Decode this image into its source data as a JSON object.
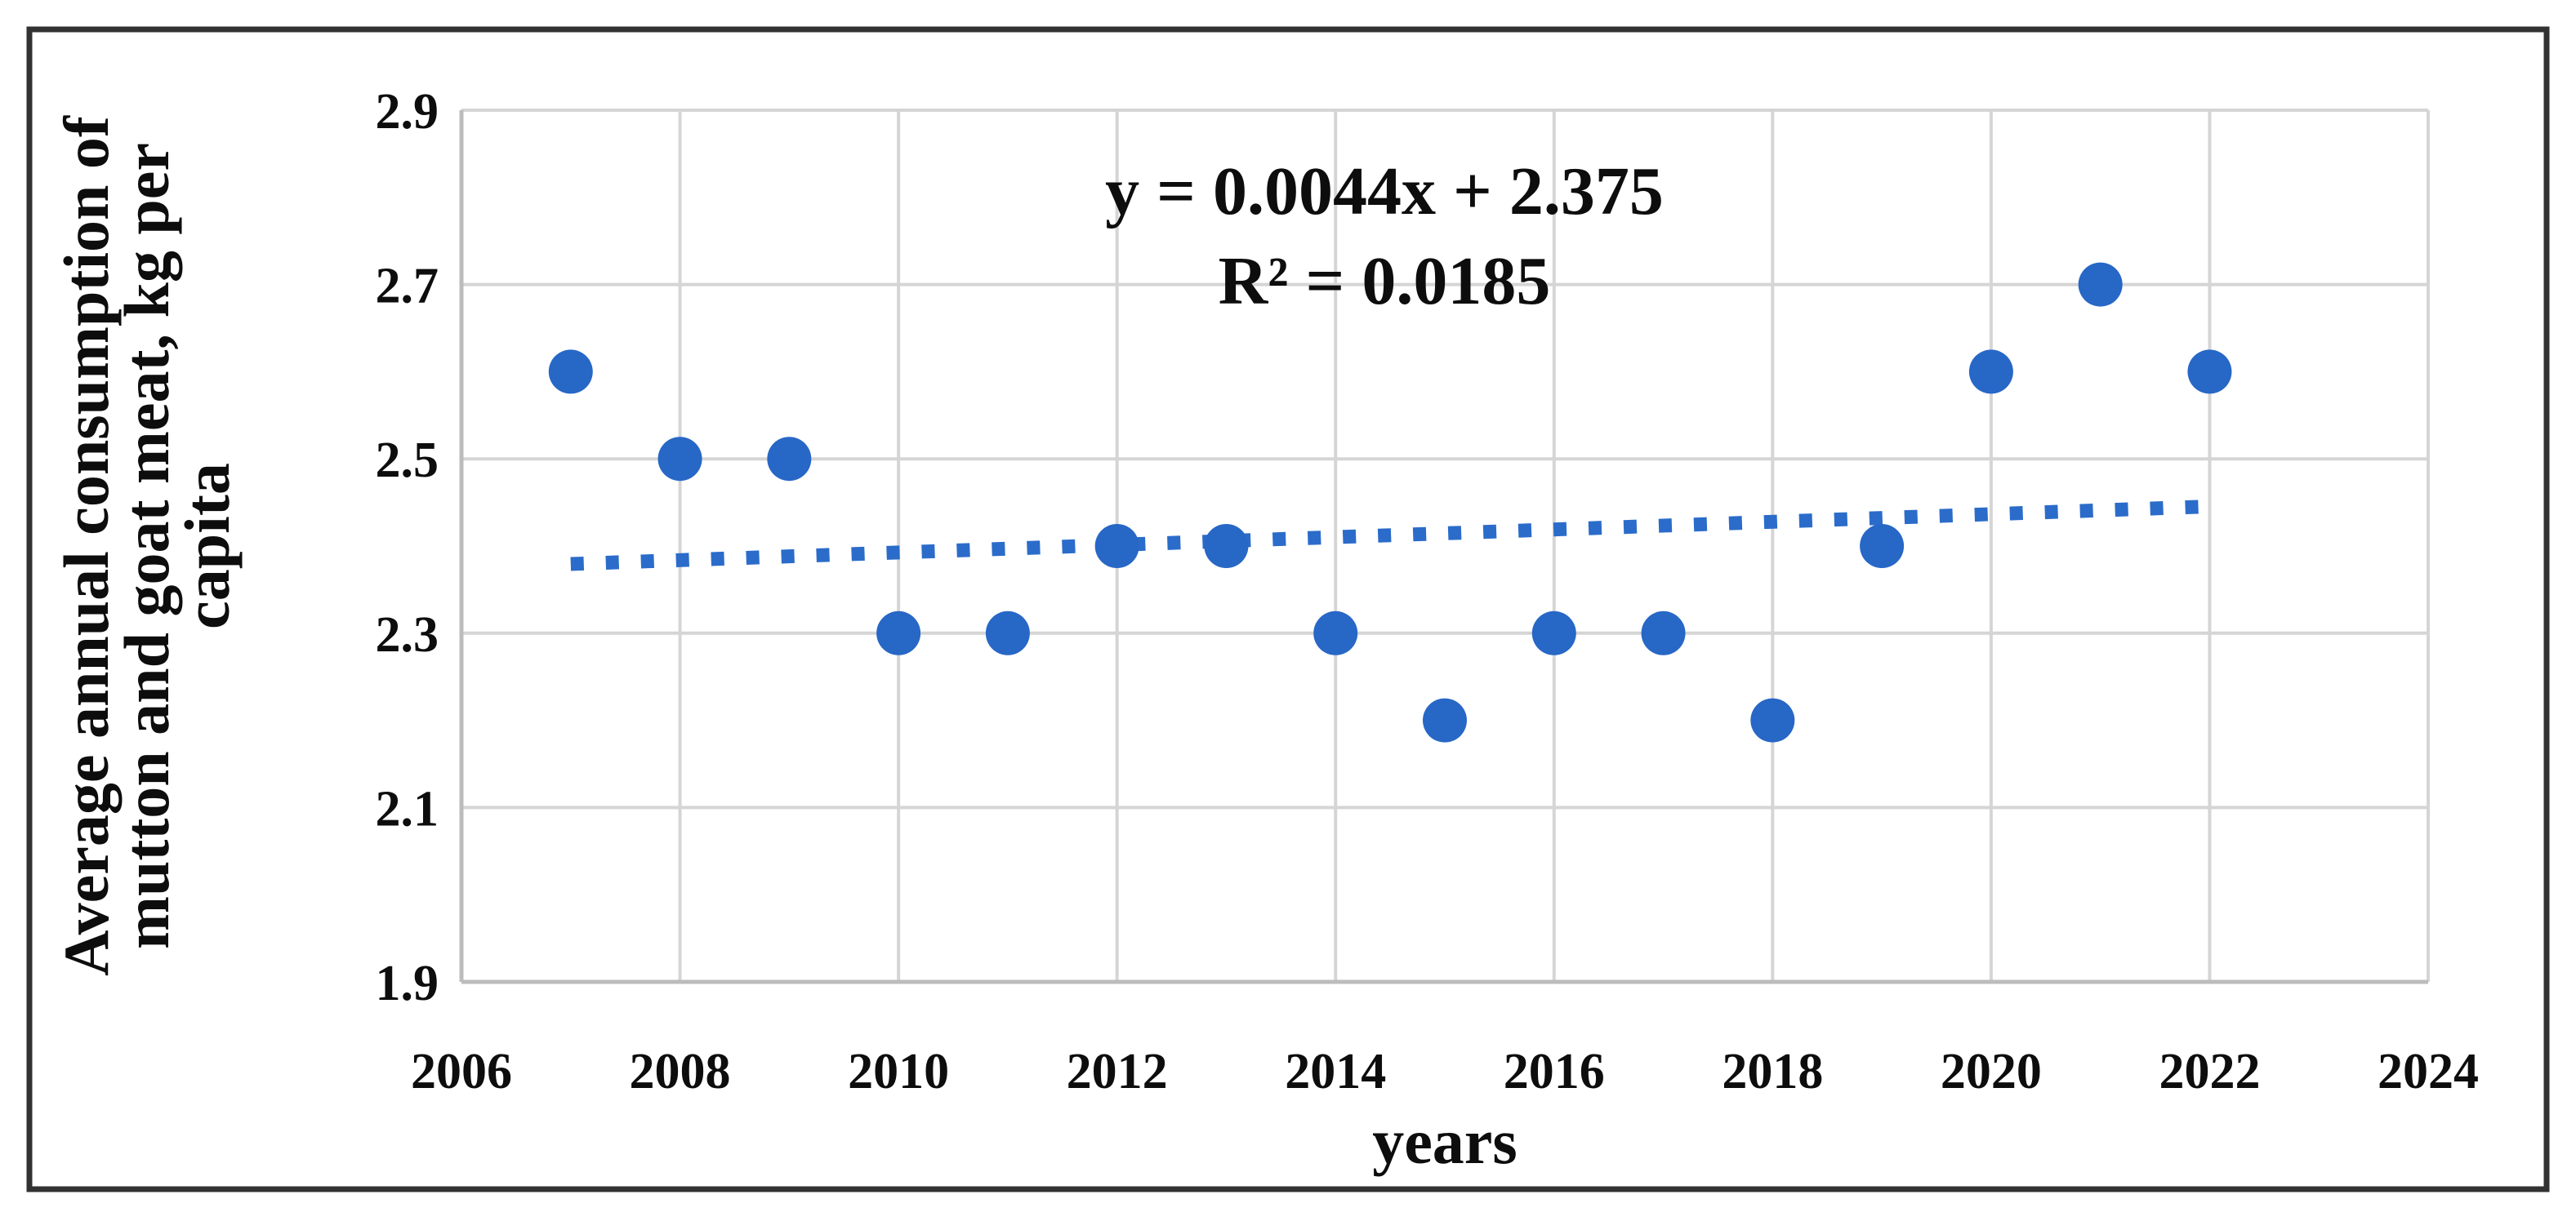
{
  "figure": {
    "background": "#ffffff",
    "border_color": "#323232",
    "border_width": 7
  },
  "chart_data": {
    "type": "scatter",
    "title": "",
    "x": [
      2007,
      2008,
      2009,
      2010,
      2011,
      2012,
      2013,
      2014,
      2015,
      2016,
      2017,
      2018,
      2019,
      2020,
      2021,
      2022
    ],
    "y": [
      2.6,
      2.5,
      2.5,
      2.3,
      2.3,
      2.4,
      2.4,
      2.3,
      2.2,
      2.3,
      2.3,
      2.2,
      2.4,
      2.6,
      2.7,
      2.6
    ],
    "xlabel": "years",
    "ylabel": "Average annual consumption of mutton and goat meat, kg per capita",
    "ylabel_lines": [
      "Average annual consumption of",
      "mutton and goat meat, kg per",
      "capita"
    ],
    "xlim": [
      2006,
      2024
    ],
    "ylim": [
      1.9,
      2.9
    ],
    "xticks": [
      2006,
      2008,
      2010,
      2012,
      2014,
      2016,
      2018,
      2020,
      2022,
      2024
    ],
    "yticks": [
      2.9,
      2.7,
      2.5,
      2.3,
      2.1,
      1.9
    ],
    "ytick_labels": [
      "2.9",
      "2.7",
      "2.5",
      "2.3",
      "2.1",
      "1.9"
    ],
    "grid": true,
    "legend_position": "none",
    "annotation": {
      "equation": "y = 0.0044x + 2.375",
      "r_squared": "R² = 0.0185"
    },
    "trendline": {
      "style": "dotted",
      "slope": 0.0044,
      "intercept": 2.375,
      "x_index_start": 1,
      "x_index_end": 16
    },
    "colors": {
      "marker": "#2767c6",
      "trendline": "#2b6cca",
      "gridline": "#d5d5d5",
      "axis_line": "#bcbcbc",
      "text": "#0d0d0d"
    }
  }
}
